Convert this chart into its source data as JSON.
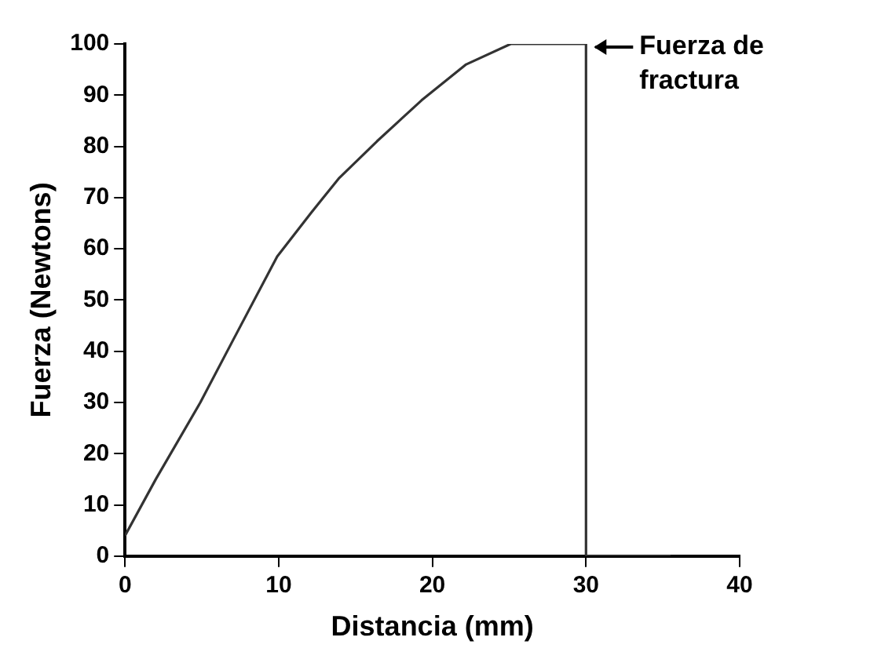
{
  "chart_data": {
    "type": "line",
    "xlabel": "Distancia (mm)",
    "ylabel": "Fuerza (Newtons)",
    "series": [
      {
        "color": "#333333",
        "x": [
          0,
          2,
          4.9,
          7,
          9.9,
          12.1,
          13.9,
          16.4,
          19.3,
          22.2,
          25.1,
          27,
          30,
          30,
          35.5
        ],
        "values": [
          4,
          15,
          30,
          42,
          58.5,
          67,
          73.7,
          81,
          89,
          96,
          100,
          100,
          100,
          0,
          0
        ]
      }
    ],
    "xlim": [
      0,
      40
    ],
    "xticks": [
      0,
      10,
      20,
      30,
      40
    ],
    "ylim": [
      0,
      100
    ],
    "yticks": [
      0,
      10,
      20,
      30,
      40,
      50,
      60,
      70,
      80,
      90,
      100
    ],
    "grid": false,
    "legend": false,
    "marker": "none",
    "line_style": "solid",
    "annotations": [
      {
        "text": "Fuerza de\nfractura",
        "x": 30,
        "y": 100
      }
    ]
  }
}
